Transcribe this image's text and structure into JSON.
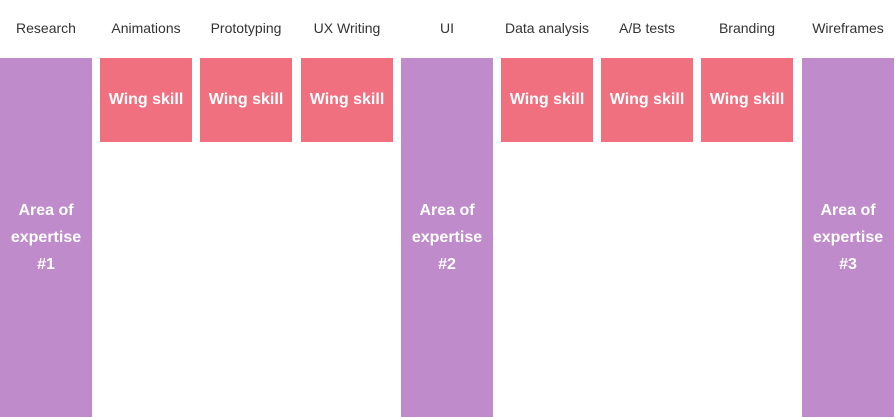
{
  "columns": [
    {
      "header": "Research",
      "area": "Area of expertise #1"
    },
    {
      "header": "Animations",
      "wing_skill": "Wing skill"
    },
    {
      "header": "Prototyping",
      "wing_skill": "Wing skill"
    },
    {
      "header": "UX Writing",
      "wing_skill": "Wing skill"
    },
    {
      "header": "UI",
      "area": "Area of expertise #2"
    },
    {
      "header": "Data analysis",
      "wing_skill": "Wing skill"
    },
    {
      "header": "A/B tests",
      "wing_skill": "Wing skill"
    },
    {
      "header": "Branding",
      "wing_skill": "Wing skill"
    },
    {
      "header": "Wireframes",
      "area": "Area of expertise #3"
    }
  ]
}
